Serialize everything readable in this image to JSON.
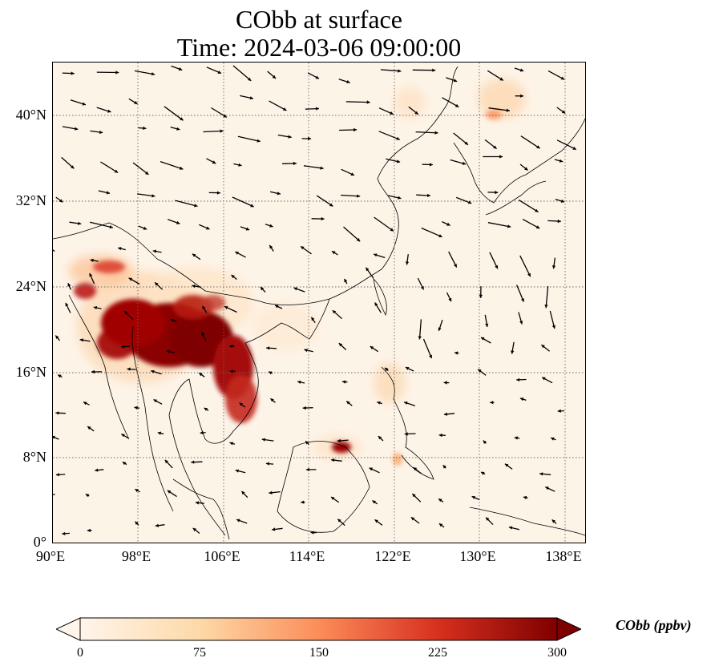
{
  "title": {
    "line1": "CObb at surface",
    "line2": "Time: 2024-03-06 09:00:00"
  },
  "map": {
    "lat_range": [
      0,
      45
    ],
    "lon_range": [
      90,
      140
    ],
    "lat_ticks": [
      "40°N",
      "32°N",
      "24°N",
      "16°N",
      "8°N",
      "0°"
    ],
    "lon_ticks": [
      "90°E",
      "98°E",
      "106°E",
      "114°E",
      "122°E",
      "130°E",
      "138°E"
    ],
    "gridlines": "dotted",
    "field_name": "CObb",
    "hotspots": [
      {
        "region": "Myanmar-Laos-Thailand",
        "level": "very high"
      },
      {
        "region": "Vietnam/Laos",
        "level": "high"
      },
      {
        "region": "Borneo north",
        "level": "high"
      },
      {
        "region": "Northeast China/Russia border",
        "level": "moderate"
      }
    ]
  },
  "colorbar": {
    "label": "CObb (ppbv)",
    "ticks": [
      "0",
      "75",
      "150",
      "225",
      "300"
    ],
    "min": 0,
    "max": 300,
    "colormap_stops": [
      "#fff5eb",
      "#fdd9a8",
      "#fc8d59",
      "#d7301f",
      "#7f0000"
    ]
  }
}
